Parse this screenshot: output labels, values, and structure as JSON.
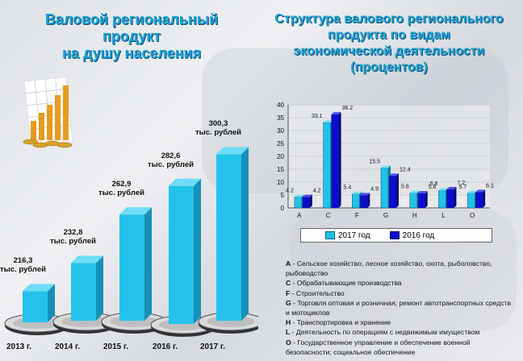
{
  "left": {
    "title_line1": "Валовой региональный продукт",
    "title_line2": "на душу населения",
    "unit": "тыс. рублей"
  },
  "right": {
    "title_line1": "Структура  валового регионального",
    "title_line2": "продукта  по видам",
    "title_line3": "экономической деятельности",
    "title_line4": "(процентов)"
  },
  "colors": {
    "cyan": "#1fc3e8",
    "blue": "#0a0fd0",
    "title": "#1fa2d8"
  },
  "chart_data": [
    {
      "type": "bar",
      "title": "Валовой региональный продукт на душу населения",
      "categories": [
        "2013 г.",
        "2014 г.",
        "2015 г.",
        "2016 г.",
        "2017 г."
      ],
      "values": [
        216.3,
        232.8,
        262.9,
        282.6,
        300.3
      ],
      "value_labels": [
        "216,3",
        "232,8",
        "262,9",
        "282,6",
        "300,3"
      ],
      "unit": "тыс. рублей"
    },
    {
      "type": "bar",
      "title": "Структура валового регионального продукта по видам экономической деятельности (процентов)",
      "categories": [
        "A",
        "C",
        "F",
        "G",
        "H",
        "L",
        "O"
      ],
      "ylim": [
        0,
        40
      ],
      "yticks": [
        "0",
        "5",
        "10",
        "15",
        "20",
        "25",
        "30",
        "35",
        "40"
      ],
      "series": [
        {
          "name": "2017 год",
          "values": [
            4.2,
            33.1,
            5.4,
            15.5,
            5.8,
            6.8,
            5.7
          ],
          "labels": [
            "4.2",
            "33.1",
            "5.4",
            "15.5",
            "5.8",
            "6.8",
            "5.7"
          ]
        },
        {
          "name": "2016 год",
          "values": [
            4.2,
            36.2,
            4.9,
            12.4,
            5.6,
            7.2,
            6.1
          ],
          "labels": [
            "4.2",
            "36.2",
            "4.9",
            "12.4",
            "5.6",
            "7.2",
            "6.1"
          ]
        }
      ]
    }
  ],
  "notes": [
    {
      "code": "A",
      "text": "Сельское хозяйство, лесное хозяйство, охота, рыболовство, рыбоводство"
    },
    {
      "code": "C",
      "text": "Обрабатывающие производства"
    },
    {
      "code": "F",
      "text": "Строительство"
    },
    {
      "code": "G",
      "text": "Торговля оптовая и розничная; ремонт автотранспортных средств и мотоциклов"
    },
    {
      "code": "H",
      "text": "Транспортировка и хранение"
    },
    {
      "code": "L",
      "text": "Деятельность по операциям с недвижимым имуществом"
    },
    {
      "code": "O",
      "text": "Государственное управление и обеспечение военной безопасности; социальное обеспечение"
    }
  ]
}
